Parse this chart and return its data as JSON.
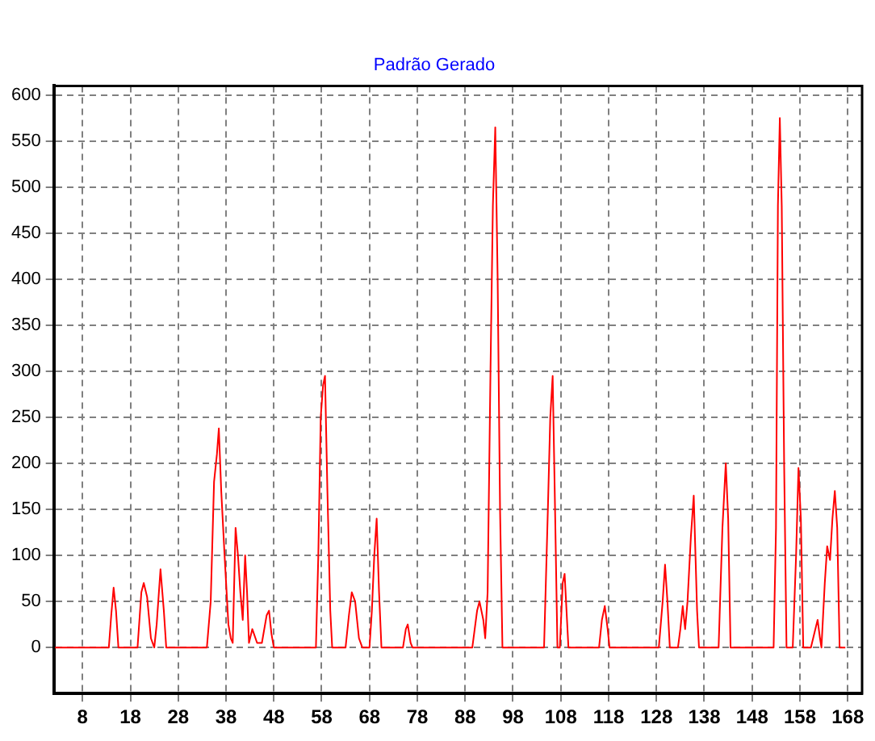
{
  "chart_data": {
    "type": "line",
    "title": "Padrão Gerado",
    "xlim": [
      2,
      171
    ],
    "ylim": [
      -50,
      610
    ],
    "xticks": [
      8,
      18,
      28,
      38,
      48,
      58,
      68,
      78,
      88,
      98,
      108,
      118,
      128,
      138,
      148,
      158,
      168
    ],
    "yticks": [
      0,
      50,
      100,
      150,
      200,
      250,
      300,
      350,
      400,
      450,
      500,
      550,
      600
    ],
    "grid": true,
    "legend": false,
    "marker": "none",
    "line_style": "solid",
    "series": [
      {
        "color": "#ff0000",
        "x": [
          2,
          13.5,
          14,
          14.5,
          15,
          15.5,
          19.5,
          20.3,
          20.8,
          21.5,
          22.3,
          23,
          23.5,
          24.3,
          25,
          25.5,
          34,
          34.8,
          35.5,
          36.1,
          36.5,
          37,
          37.7,
          38.5,
          39,
          39.4,
          40,
          40.5,
          41,
          41.5,
          42,
          42.4,
          42.8,
          43.5,
          44.5,
          45.5,
          46.5,
          47,
          47.5,
          48,
          56.8,
          57.3,
          57.8,
          58.3,
          58.7,
          59.2,
          59.8,
          60.2,
          63,
          63.7,
          64.3,
          65,
          65.8,
          66.5,
          68,
          68.5,
          69,
          69.5,
          70,
          70.5,
          75,
          75.6,
          76,
          76.6,
          77,
          89.5,
          90.5,
          91,
          91.8,
          92.2,
          92.7,
          93.3,
          93.8,
          94.3,
          94.8,
          95.3,
          95.8,
          104.5,
          105.3,
          105.8,
          106.3,
          106.8,
          107.3,
          107.8,
          108.4,
          108.8,
          109.3,
          109.6,
          116,
          116.6,
          117.2,
          117.8,
          118.2,
          128.5,
          129.3,
          129.8,
          130.3,
          130.8,
          132.5,
          133,
          133.5,
          134,
          134.5,
          135.2,
          135.8,
          136.5,
          136.9,
          141,
          141.8,
          142.5,
          143,
          143.5,
          152.5,
          153,
          153.4,
          153.8,
          154.2,
          154.7,
          155.2,
          156.5,
          157.2,
          157.7,
          158.2,
          158.7,
          160.3,
          161,
          161.7,
          162.2,
          162.5,
          163.2,
          163.7,
          164.3,
          164.8,
          165.3,
          165.8,
          166.3,
          167.5
        ],
        "values": [
          0,
          0,
          35,
          65,
          40,
          0,
          0,
          60,
          70,
          55,
          10,
          0,
          25,
          85,
          40,
          0,
          0,
          50,
          180,
          210,
          238,
          170,
          100,
          25,
          10,
          5,
          130,
          100,
          60,
          30,
          100,
          60,
          5,
          20,
          5,
          5,
          35,
          40,
          15,
          0,
          0,
          100,
          250,
          285,
          295,
          170,
          40,
          0,
          0,
          35,
          60,
          50,
          10,
          0,
          0,
          40,
          100,
          140,
          60,
          0,
          0,
          20,
          25,
          5,
          0,
          0,
          40,
          50,
          30,
          10,
          60,
          300,
          480,
          565,
          400,
          150,
          0,
          0,
          150,
          250,
          295,
          150,
          0,
          0,
          70,
          80,
          30,
          0,
          0,
          30,
          45,
          20,
          0,
          0,
          50,
          90,
          50,
          0,
          0,
          20,
          45,
          20,
          50,
          120,
          165,
          40,
          0,
          0,
          130,
          200,
          140,
          0,
          0,
          130,
          480,
          575,
          480,
          200,
          0,
          0,
          100,
          195,
          140,
          0,
          0,
          15,
          30,
          10,
          0,
          70,
          110,
          95,
          140,
          170,
          130,
          0,
          0
        ]
      }
    ]
  }
}
